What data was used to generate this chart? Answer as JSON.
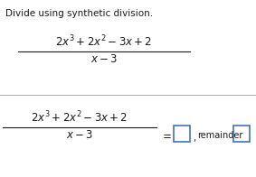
{
  "title": "Divide using synthetic division.",
  "background_color": "#ffffff",
  "text_color": "#1a1a1a",
  "box_color": "#4472c4",
  "divider_color": "#b0b0b0",
  "title_fontsize": 7.5,
  "expr_fontsize": 8.5,
  "small_fontsize": 7.0,
  "fig_width": 2.83,
  "fig_height": 1.96,
  "dpi": 100
}
